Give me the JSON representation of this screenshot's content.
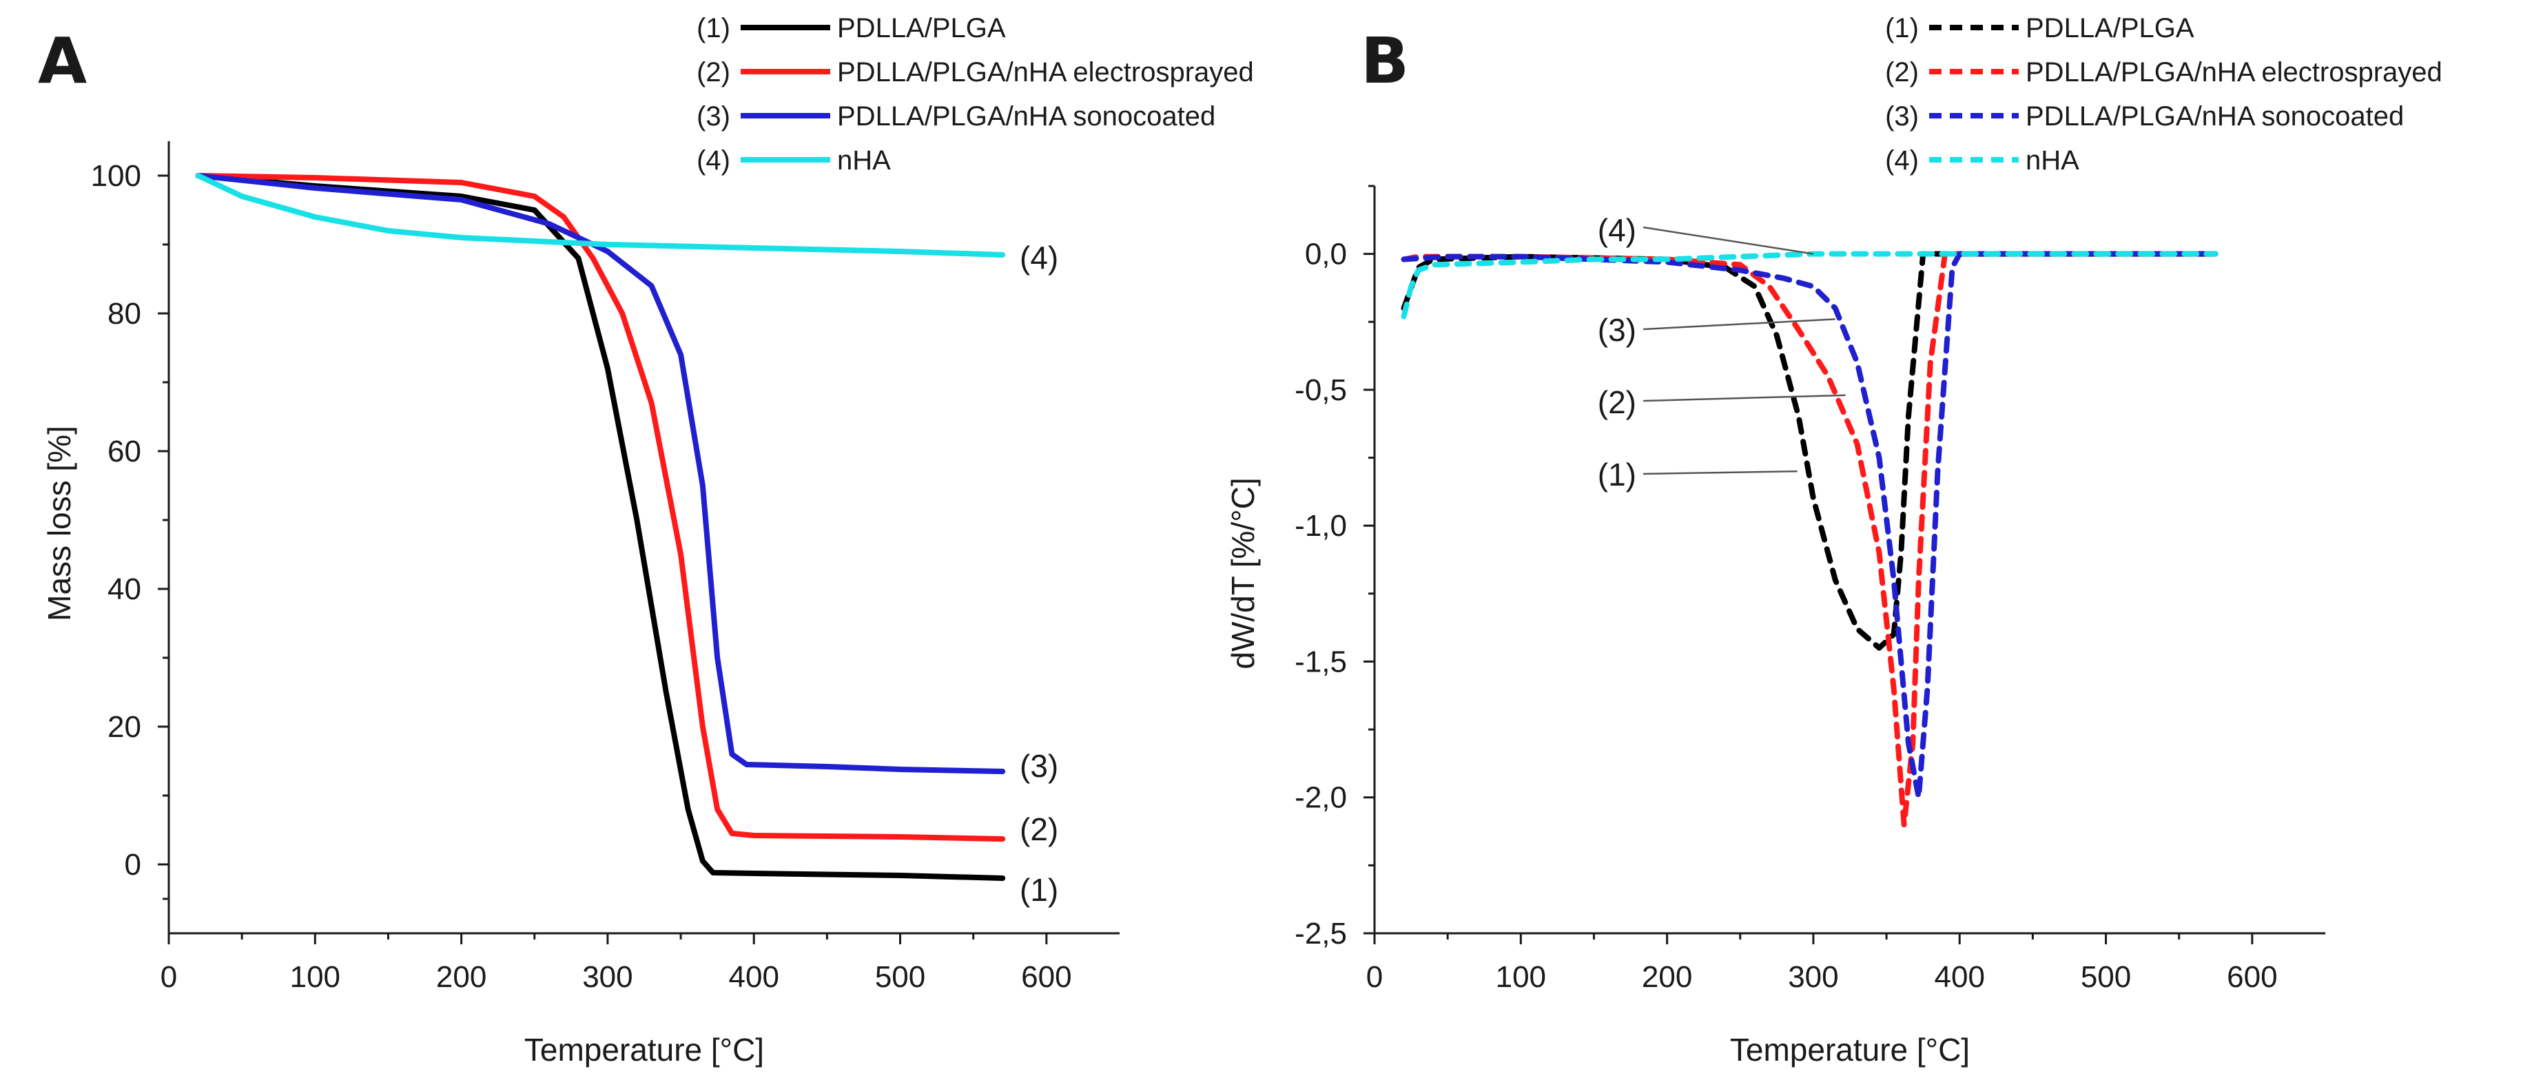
{
  "chart_data": [
    {
      "panel": "A",
      "type": "line",
      "title": "",
      "xlabel": "Temperature [°C]",
      "ylabel": "Mass loss [%]",
      "xlim": [
        0,
        650
      ],
      "ylim": [
        -10,
        105
      ],
      "xticks": [
        0,
        100,
        200,
        300,
        400,
        500,
        600
      ],
      "xtick_labels": [
        "0",
        "100",
        "200",
        "300",
        "400",
        "500",
        "600"
      ],
      "yticks": [
        0,
        20,
        40,
        60,
        80,
        100
      ],
      "ytick_labels": [
        "0",
        "20",
        "40",
        "60",
        "80",
        "100"
      ],
      "grid": false,
      "legend_position": "top-center",
      "series": [
        {
          "name": "PDLLA/PLGA",
          "number": "(1)",
          "color": "#000000",
          "style": "solid",
          "x": [
            20,
            100,
            200,
            250,
            280,
            300,
            320,
            340,
            355,
            365,
            372,
            400,
            500,
            570
          ],
          "y": [
            100,
            98.5,
            97,
            95,
            88,
            72,
            50,
            25,
            8,
            0.5,
            -1.2,
            -1.3,
            -1.6,
            -2
          ]
        },
        {
          "name": "PDLLA/PLGA/nHA electrosprayed",
          "number": "(2)",
          "color": "#ff1a1a",
          "style": "solid",
          "x": [
            20,
            100,
            200,
            250,
            270,
            290,
            310,
            330,
            350,
            365,
            375,
            385,
            400,
            500,
            570
          ],
          "y": [
            100,
            99.7,
            99,
            97,
            94,
            88,
            80,
            67,
            45,
            20,
            8,
            4.5,
            4.2,
            4,
            3.7
          ]
        },
        {
          "name": "PDLLA/PLGA/nHA sonocoated",
          "number": "(3)",
          "color": "#2020d0",
          "style": "solid",
          "x": [
            20,
            100,
            200,
            260,
            300,
            330,
            350,
            365,
            375,
            385,
            395,
            450,
            500,
            570
          ],
          "y": [
            100,
            98.2,
            96.5,
            93,
            89,
            84,
            74,
            55,
            30,
            16,
            14.5,
            14.2,
            13.8,
            13.5
          ]
        },
        {
          "name": "nHA",
          "number": "(4)",
          "color": "#18e0e6",
          "style": "solid",
          "x": [
            20,
            50,
            100,
            150,
            200,
            300,
            400,
            500,
            570
          ],
          "y": [
            100,
            97,
            94,
            92,
            91,
            90,
            89.5,
            89,
            88.5
          ]
        }
      ],
      "annotations": [
        "(4)",
        "(3)",
        "(2)",
        "(1)"
      ]
    },
    {
      "panel": "B",
      "type": "line",
      "title": "",
      "xlabel": "Temperature [°C]",
      "ylabel": "dW/dT [%/°C]",
      "xlim": [
        0,
        650
      ],
      "ylim": [
        -2.5,
        0.25
      ],
      "xticks": [
        0,
        100,
        200,
        300,
        400,
        500,
        600
      ],
      "xtick_labels": [
        "0",
        "100",
        "200",
        "300",
        "400",
        "500",
        "600"
      ],
      "yticks": [
        0.0,
        -0.5,
        -1.0,
        -1.5,
        -2.0,
        -2.5
      ],
      "ytick_labels": [
        "0,0",
        "-0,5",
        "-1,0",
        "-1,5",
        "-2,0",
        "-2,5"
      ],
      "grid": false,
      "legend_position": "top-right",
      "series": [
        {
          "name": "PDLLA/PLGA",
          "number": "(1)",
          "color": "#000000",
          "style": "dashed",
          "x": [
            20,
            30,
            40,
            100,
            200,
            240,
            260,
            275,
            290,
            300,
            315,
            330,
            345,
            355,
            360,
            365,
            375,
            400,
            500,
            575
          ],
          "y": [
            -0.2,
            -0.05,
            -0.02,
            -0.01,
            -0.02,
            -0.05,
            -0.12,
            -0.3,
            -0.6,
            -0.9,
            -1.2,
            -1.38,
            -1.45,
            -1.4,
            -1.1,
            -0.6,
            0.0,
            0.0,
            0.0,
            0.0
          ]
        },
        {
          "name": "PDLLA/PLGA/nHA electrosprayed",
          "number": "(2)",
          "color": "#ff1a1a",
          "style": "dashed",
          "x": [
            20,
            30,
            100,
            200,
            250,
            270,
            290,
            310,
            330,
            345,
            355,
            362,
            368,
            372,
            380,
            390,
            400,
            500,
            575
          ],
          "y": [
            -0.02,
            -0.01,
            -0.01,
            -0.02,
            -0.04,
            -0.12,
            -0.28,
            -0.45,
            -0.7,
            -1.1,
            -1.6,
            -2.1,
            -1.8,
            -1.2,
            -0.4,
            0.0,
            0.0,
            0.0,
            0.0
          ]
        },
        {
          "name": "PDLLA/PLGA/nHA sonocoated",
          "number": "(3)",
          "color": "#2020d0",
          "style": "dashed",
          "x": [
            20,
            50,
            100,
            200,
            250,
            280,
            300,
            315,
            330,
            345,
            355,
            365,
            372,
            378,
            385,
            395,
            400,
            500,
            575
          ],
          "y": [
            -0.02,
            -0.01,
            -0.01,
            -0.03,
            -0.06,
            -0.09,
            -0.12,
            -0.2,
            -0.4,
            -0.75,
            -1.2,
            -1.8,
            -2.0,
            -1.6,
            -0.8,
            -0.05,
            0.0,
            0.0,
            0.0
          ]
        },
        {
          "name": "nHA",
          "number": "(4)",
          "color": "#18e0e6",
          "style": "dashed",
          "x": [
            20,
            25,
            30,
            40,
            100,
            150,
            200,
            300,
            400,
            500,
            575
          ],
          "y": [
            -0.23,
            -0.12,
            -0.06,
            -0.04,
            -0.03,
            -0.02,
            -0.02,
            0.0,
            0.0,
            0.0,
            0.0
          ]
        }
      ],
      "annotations": [
        "(4)",
        "(3)",
        "(2)",
        "(1)"
      ]
    }
  ]
}
